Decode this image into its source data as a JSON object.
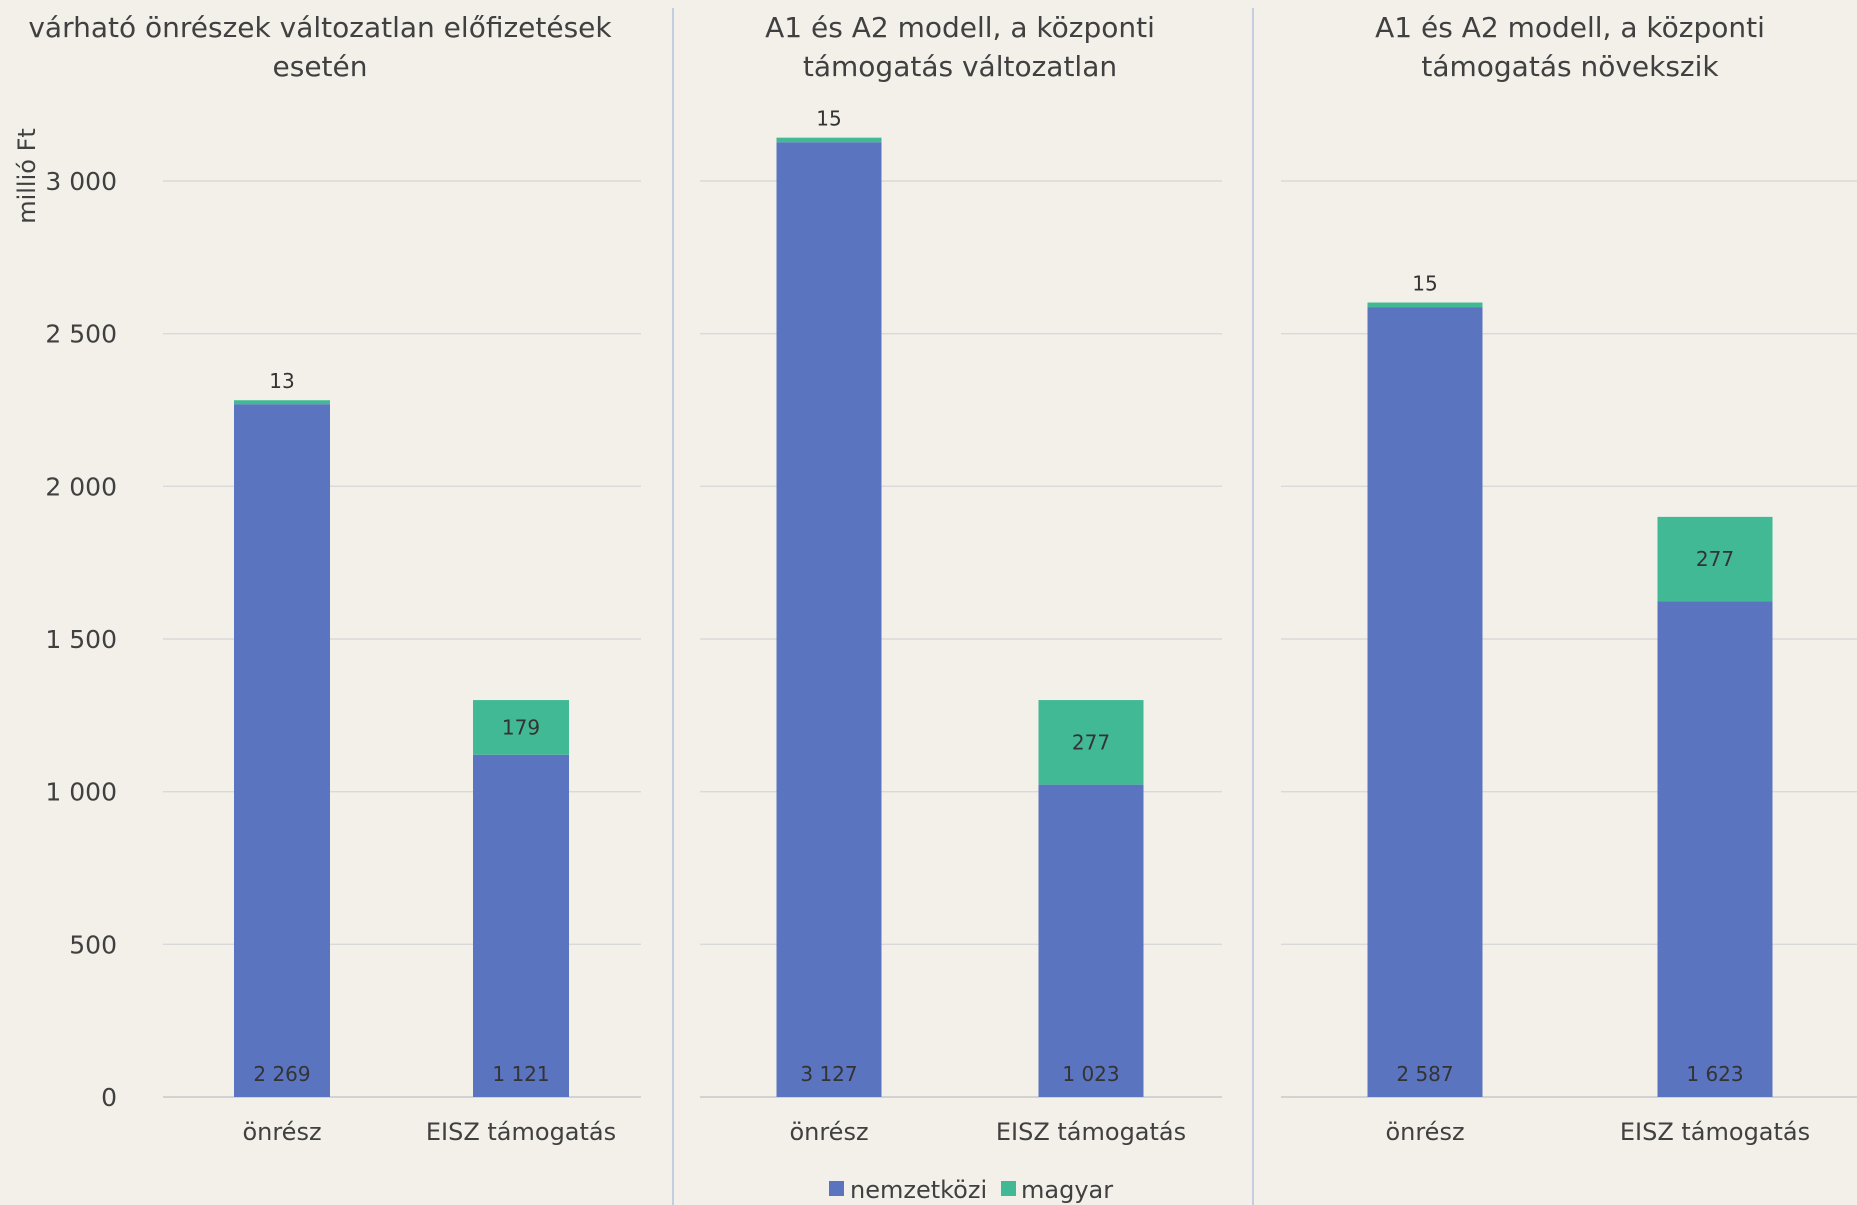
{
  "colors": {
    "background": "#f3f0ea",
    "nemzetkozi": "#5b74c0",
    "magyar": "#40b994",
    "gridline": "#d9d9d9",
    "divider": "#c5cde0",
    "text": "#404040"
  },
  "y_axis": {
    "title": "millió Ft",
    "ticks": [
      "0",
      "500",
      "1 000",
      "1 500",
      "2 000",
      "2 500",
      "3 000"
    ],
    "tick_values": [
      0,
      500,
      1000,
      1500,
      2000,
      2500,
      3000
    ]
  },
  "legend": {
    "items": [
      {
        "label": "nemzetközi",
        "color": "#5b74c0"
      },
      {
        "label": "magyar",
        "color": "#40b994"
      }
    ],
    "position": "bottom-center"
  },
  "chart_data": [
    {
      "type": "bar",
      "stacked": true,
      "title_lines": [
        "várható önrészek változatlan előfizetések",
        "esetén"
      ],
      "categories": [
        "önrész",
        "EISZ támogatás"
      ],
      "series": [
        {
          "name": "nemzetközi",
          "values": [
            2269,
            1121
          ],
          "labels": [
            "2 269",
            "1 121"
          ]
        },
        {
          "name": "magyar",
          "values": [
            13,
            179
          ],
          "labels": [
            "13",
            "179"
          ]
        }
      ],
      "ylim": [
        0,
        3000
      ],
      "ylabel": "millió Ft",
      "grid": true
    },
    {
      "type": "bar",
      "stacked": true,
      "title_lines": [
        "A1 és A2 modell, a központi",
        "támogatás változatlan"
      ],
      "categories": [
        "önrész",
        "EISZ támogatás"
      ],
      "series": [
        {
          "name": "nemzetközi",
          "values": [
            3127,
            1023
          ],
          "labels": [
            "3 127",
            "1 023"
          ]
        },
        {
          "name": "magyar",
          "values": [
            15,
            277
          ],
          "labels": [
            "15",
            "277"
          ]
        }
      ],
      "ylim": [
        0,
        3000
      ],
      "grid": true
    },
    {
      "type": "bar",
      "stacked": true,
      "title_lines": [
        "A1 és A2 modell, a központi",
        "támogatás növekszik"
      ],
      "categories": [
        "önrész",
        "EISZ támogatás"
      ],
      "series": [
        {
          "name": "nemzetközi",
          "values": [
            2587,
            1623
          ],
          "labels": [
            "2 587",
            "1 623"
          ]
        },
        {
          "name": "magyar",
          "values": [
            15,
            277
          ],
          "labels": [
            "15",
            "277"
          ]
        }
      ],
      "ylim": [
        0,
        3000
      ],
      "grid": true
    }
  ]
}
